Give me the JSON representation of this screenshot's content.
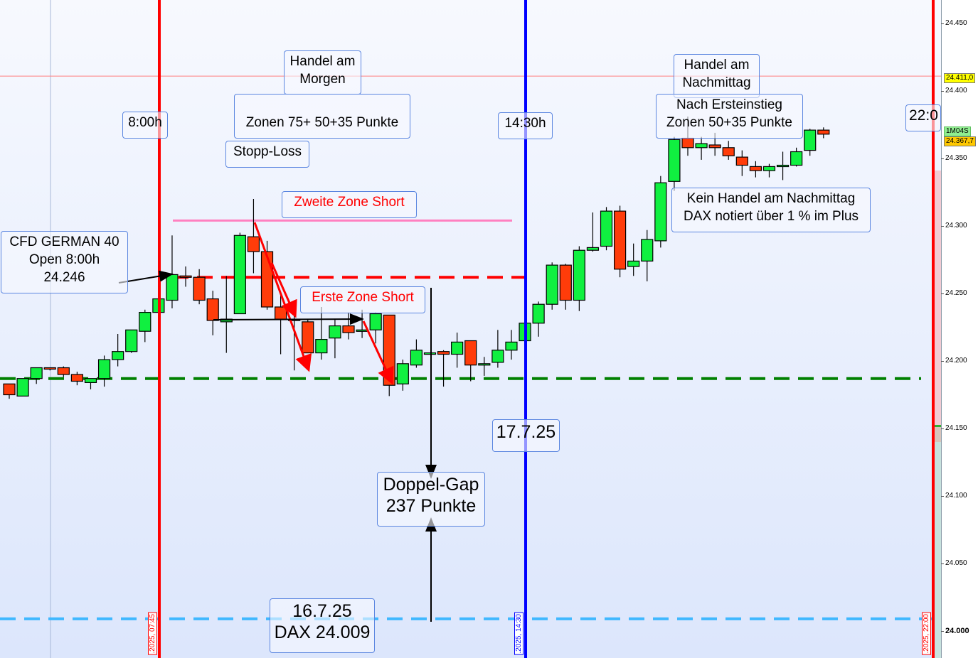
{
  "chart_data": {
    "type": "candlestick",
    "title": "",
    "ylim": [
      23980,
      24485
    ],
    "y_ticks": [
      "24.450",
      "24.400",
      "24.350",
      "24.300",
      "24.250",
      "24.200",
      "24.150",
      "24.100",
      "24.050",
      "24.000"
    ],
    "y_tick_values": [
      24450,
      24400,
      24350,
      24300,
      24250,
      24200,
      24150,
      24100,
      24050,
      24000
    ],
    "grid": false,
    "candle_fields": [
      "open",
      "high",
      "low",
      "close"
    ],
    "candles": [
      [
        24183,
        24183,
        24172,
        24175
      ],
      [
        24174,
        24187,
        24174,
        24187
      ],
      [
        24187,
        24195,
        24183,
        24195
      ],
      [
        24195,
        24195,
        24193,
        24194
      ],
      [
        24195,
        24196,
        24188,
        24190
      ],
      [
        24190,
        24192,
        24182,
        24185
      ],
      [
        24184,
        24187,
        24179,
        24187
      ],
      [
        24187,
        24204,
        24181,
        24201
      ],
      [
        24201,
        24220,
        24196,
        24207
      ],
      [
        24207,
        24223,
        24206,
        24223
      ],
      [
        24222,
        24238,
        24214,
        24236
      ],
      [
        24236,
        24246,
        24236,
        24246
      ],
      [
        24245,
        24293,
        24239,
        24264
      ],
      [
        24263,
        24270,
        24255,
        24262
      ],
      [
        24262,
        24268,
        24242,
        24245
      ],
      [
        24246,
        24252,
        24219,
        24230
      ],
      [
        24229,
        24263,
        24206,
        24231
      ],
      [
        24235,
        24295,
        24235,
        24293
      ],
      [
        24292,
        24320,
        24265,
        24281
      ],
      [
        24281,
        24289,
        24238,
        24240
      ],
      [
        24240,
        24251,
        24205,
        24231
      ],
      [
        24231,
        24245,
        24193,
        24230
      ],
      [
        24229,
        24231,
        24206,
        24206
      ],
      [
        24206,
        24240,
        24201,
        24216
      ],
      [
        24217,
        24231,
        24202,
        24226
      ],
      [
        24226,
        24236,
        24216,
        24221
      ],
      [
        24223,
        24238,
        24217,
        24223
      ],
      [
        24223,
        24236,
        24213,
        24235
      ],
      [
        24234,
        24234,
        24174,
        24182
      ],
      [
        24183,
        24201,
        24178,
        24198
      ],
      [
        24197,
        24216,
        24195,
        24208
      ],
      [
        24206,
        24206,
        24206,
        24206
      ],
      [
        24207,
        24208,
        24181,
        24205
      ],
      [
        24205,
        24221,
        24195,
        24214
      ],
      [
        24215,
        24215,
        24185,
        24197
      ],
      [
        24197,
        24203,
        24189,
        24198
      ],
      [
        24199,
        24223,
        24195,
        24208
      ],
      [
        24208,
        24223,
        24201,
        24214
      ],
      [
        24215,
        24231,
        24215,
        24228
      ],
      [
        24228,
        24244,
        24218,
        24242
      ],
      [
        24242,
        24273,
        24238,
        24271
      ],
      [
        24271,
        24272,
        24238,
        24245
      ],
      [
        24245,
        24285,
        24237,
        24282
      ],
      [
        24282,
        24310,
        24281,
        24284
      ],
      [
        24285,
        24314,
        24282,
        24311
      ],
      [
        24311,
        24315,
        24262,
        24268
      ],
      [
        24270,
        24287,
        24263,
        24274
      ],
      [
        24274,
        24297,
        24259,
        24290
      ],
      [
        24289,
        24337,
        24284,
        24332
      ],
      [
        24333,
        24366,
        24326,
        24364
      ],
      [
        24365,
        24381,
        24352,
        24358
      ],
      [
        24358,
        24366,
        24349,
        24361
      ],
      [
        24360,
        24369,
        24352,
        24358
      ],
      [
        24358,
        24363,
        24349,
        24352
      ],
      [
        24351,
        24356,
        24337,
        24345
      ],
      [
        24344,
        24348,
        24336,
        24341
      ],
      [
        24341,
        24346,
        24336,
        24344
      ],
      [
        24345,
        24355,
        24334,
        24345
      ],
      [
        24345,
        24358,
        24344,
        24355
      ],
      [
        24356,
        24372,
        24352,
        24371
      ],
      [
        24371,
        24373,
        24365,
        24368
      ]
    ],
    "horizontal_lines": [
      {
        "price": 24411,
        "style": "solid-thin",
        "color": "#ff8080"
      },
      {
        "price": 24304,
        "style": "solid",
        "color": "#ff80c0"
      },
      {
        "price": 24262,
        "style": "dashed",
        "color": "#ff0000"
      },
      {
        "price": 24187,
        "style": "dashed",
        "color": "#008000"
      },
      {
        "price": 24009,
        "style": "dashed",
        "color": "#40b8ff"
      }
    ],
    "vertical_lines": [
      {
        "label": ".2025, 07:45",
        "color": "#ff0000"
      },
      {
        "label": ".2025, 14:30",
        "color": "#0000ff"
      },
      {
        "label": ".2025, 22:00",
        "color": "#ff0000"
      }
    ],
    "price_tags": {
      "line_price": "24.411,0",
      "countdown": "1M04S",
      "last_price": "24.367,7"
    },
    "colors": {
      "up": "#10f040",
      "down": "#ff3c0a",
      "background_top": "#f7f9fe",
      "background_bottom": "#dce6fc"
    }
  },
  "annotations": {
    "open_time": "8:00h",
    "morning_title": "Handel am\nMorgen",
    "morning_zones": "Zonen 75+ 50+35 Punkte",
    "stop_loss": "Stopp-Loss",
    "second_zone": "Zweite Zone Short",
    "cfd_info": "CFD GERMAN 40\nOpen 8:00h\n24.246",
    "first_zone": "Erste Zone Short",
    "us_open_time": "14:30h",
    "afternoon_title": "Handel am\nNachmittag",
    "afternoon_zones": "Nach Ersteinstieg\nZonen 50+35 Punkte",
    "no_trade": "Kein Handel am Nachmittag\nDAX notiert über 1 % im Plus",
    "close_time": "22:0",
    "date_today": "17.7.25",
    "gap": "Doppel-Gap\n237 Punkte",
    "prev_close": "16.7.25\nDAX 24.009"
  }
}
